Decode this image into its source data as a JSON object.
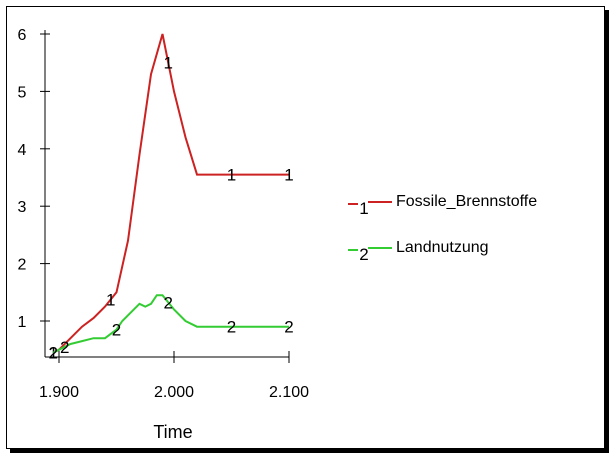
{
  "chart_data": {
    "type": "line",
    "title": "",
    "xlabel": "Time",
    "ylabel": "",
    "xlim": [
      1900,
      2100
    ],
    "ylim": [
      0.4,
      6.1
    ],
    "x_ticks": [
      1900,
      2000,
      2100
    ],
    "x_tick_labels": [
      "1.900",
      "2.000",
      "2.100"
    ],
    "y_ticks": [
      1,
      2,
      3,
      4,
      5,
      6
    ],
    "y_tick_labels": [
      "1",
      "2",
      "3",
      "4",
      "5",
      "6"
    ],
    "grid": false,
    "legend_position": "right",
    "series": [
      {
        "name": "Fossile_Brennstoffe",
        "marker_label": "1",
        "color": "#cc2222",
        "x": [
          1895,
          1900,
          1910,
          1920,
          1930,
          1940,
          1950,
          1960,
          1970,
          1980,
          1990,
          2000,
          2010,
          2020,
          2030,
          2040,
          2050,
          2060,
          2070,
          2080,
          2090,
          2100
        ],
        "y": [
          0.45,
          0.5,
          0.7,
          0.9,
          1.05,
          1.25,
          1.5,
          2.4,
          3.9,
          5.3,
          6.0,
          5.0,
          4.2,
          3.55,
          3.55,
          3.55,
          3.55,
          3.55,
          3.55,
          3.55,
          3.55,
          3.55
        ],
        "marker_x": [
          1895,
          1945,
          1995,
          2050,
          2100
        ]
      },
      {
        "name": "Landnutzung",
        "marker_label": "2",
        "color": "#33cc33",
        "x": [
          1895,
          1900,
          1910,
          1920,
          1930,
          1940,
          1950,
          1955,
          1960,
          1970,
          1975,
          1980,
          1985,
          1990,
          2000,
          2010,
          2020,
          2030,
          2040,
          2050,
          2060,
          2070,
          2080,
          2090,
          2100
        ],
        "y": [
          0.45,
          0.5,
          0.6,
          0.65,
          0.7,
          0.7,
          0.85,
          1.0,
          1.1,
          1.3,
          1.25,
          1.3,
          1.45,
          1.45,
          1.2,
          1.0,
          0.9,
          0.9,
          0.9,
          0.9,
          0.9,
          0.9,
          0.9,
          0.9,
          0.9
        ],
        "marker_x": [
          1895,
          1905,
          1950,
          1995,
          2050,
          2100
        ]
      }
    ]
  }
}
